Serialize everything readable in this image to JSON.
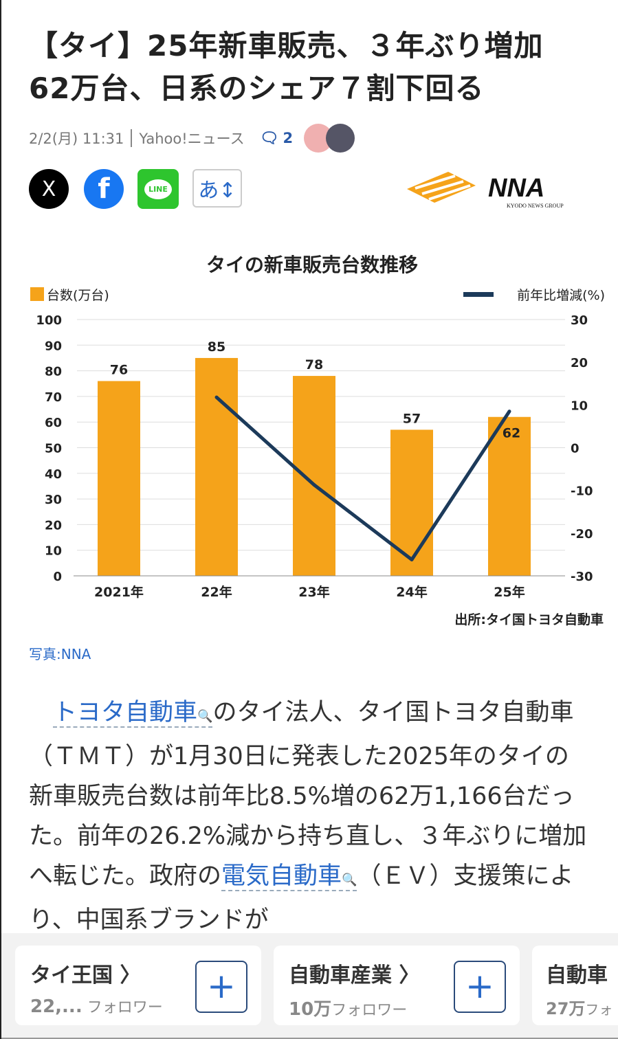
{
  "article": {
    "title": "【タイ】25年新車販売、３年ぶり増加　62万台、日系のシェア７割下回る",
    "date": "2/2(月) 11:31",
    "source": "Yahoo!ニュース",
    "comment_count": "2",
    "photo_credit": "写真:NNA",
    "body": [
      {
        "t": "　"
      },
      {
        "t": "トヨタ自動車",
        "link": true
      },
      {
        "t": "のタイ法人、タイ国トヨタ自動車（ＴＭＴ）が1月30日に発表した2025年のタイの新車販売台数は前年比8.5%増の62万1,166台だった。前年の26.2%減から持ち直し、３年ぶりに増加へ転じた。政府の"
      },
      {
        "t": "電気自動車",
        "link": true
      },
      {
        "t": "（ＥＶ）支援策により、中国系ブランドが"
      }
    ]
  },
  "share": {
    "x": "X",
    "facebook": "f",
    "line": "LINE",
    "font_size": "あ↕"
  },
  "logo": {
    "text": "NNA",
    "sub": "KYODO NEWS GROUP"
  },
  "chart_data": {
    "type": "bar+line",
    "title": "タイの新車販売台数推移",
    "categories": [
      "2021年",
      "22年",
      "23年",
      "24年",
      "25年"
    ],
    "series": [
      {
        "name": "台数(万台)",
        "type": "bar",
        "axis": "left",
        "values": [
          76,
          85,
          78,
          57,
          62
        ],
        "color": "#f5a31a"
      },
      {
        "name": "前年比増減(%)",
        "type": "line",
        "axis": "right",
        "values": [
          null,
          11.8,
          -8.7,
          -26.2,
          8.5
        ],
        "color": "#1c3a5a"
      }
    ],
    "ylim_left": [
      0,
      100
    ],
    "yticks_left": [
      0,
      10,
      20,
      30,
      40,
      50,
      60,
      70,
      80,
      90,
      100
    ],
    "ylim_right": [
      -30,
      30
    ],
    "yticks_right": [
      -30,
      -20,
      -10,
      0,
      10,
      20,
      30
    ],
    "grid": true,
    "legend": "top",
    "source": "出所:タイ国トヨタ自動車"
  },
  "topics": [
    {
      "name": "タイ王国 〉",
      "count": "22,...",
      "unit": "フォロワー"
    },
    {
      "name": "自動車産業 〉",
      "count": "10万",
      "unit": "フォロワー"
    },
    {
      "name": "自動車",
      "count": "27万",
      "unit": "フォ"
    }
  ],
  "follow_label": "+"
}
